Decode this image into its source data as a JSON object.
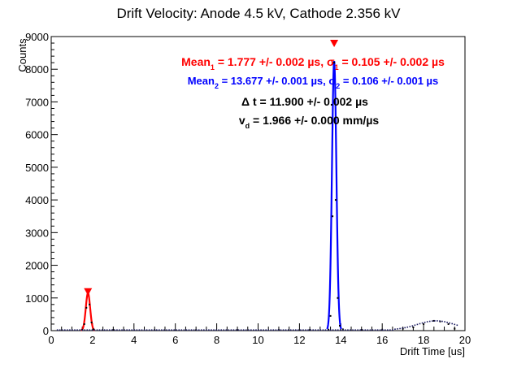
{
  "chart_data": {
    "type": "histogram",
    "title": "Drift Velocity: Anode 4.5 kV, Cathode 2.356 kV",
    "xlabel": "Drift Time [us]",
    "ylabel": "Counts",
    "xlim": [
      0,
      20
    ],
    "ylim": [
      0,
      9000
    ],
    "x_ticks": [
      0,
      2,
      4,
      6,
      8,
      10,
      12,
      14,
      16,
      18,
      20
    ],
    "y_ticks": [
      0,
      1000,
      2000,
      3000,
      4000,
      5000,
      6000,
      7000,
      8000,
      9000
    ],
    "grid": false,
    "histogram_points": [
      {
        "x": 1.5,
        "y": 30
      },
      {
        "x": 1.6,
        "y": 200
      },
      {
        "x": 1.7,
        "y": 700
      },
      {
        "x": 1.777,
        "y": 1150
      },
      {
        "x": 1.85,
        "y": 800
      },
      {
        "x": 1.95,
        "y": 250
      },
      {
        "x": 2.05,
        "y": 40
      },
      {
        "x": 3.0,
        "y": 20
      },
      {
        "x": 5.0,
        "y": 15
      },
      {
        "x": 7.0,
        "y": 15
      },
      {
        "x": 9.0,
        "y": 15
      },
      {
        "x": 11.0,
        "y": 20
      },
      {
        "x": 12.5,
        "y": 20
      },
      {
        "x": 13.4,
        "y": 30
      },
      {
        "x": 13.5,
        "y": 450
      },
      {
        "x": 13.6,
        "y": 3500
      },
      {
        "x": 13.677,
        "y": 8200
      },
      {
        "x": 13.75,
        "y": 4000
      },
      {
        "x": 13.85,
        "y": 1000
      },
      {
        "x": 13.95,
        "y": 150
      },
      {
        "x": 14.1,
        "y": 40
      },
      {
        "x": 15.0,
        "y": 20
      },
      {
        "x": 16.0,
        "y": 30
      },
      {
        "x": 17.0,
        "y": 60
      },
      {
        "x": 17.5,
        "y": 100
      },
      {
        "x": 18.0,
        "y": 200
      },
      {
        "x": 18.5,
        "y": 300
      },
      {
        "x": 18.8,
        "y": 280
      },
      {
        "x": 19.2,
        "y": 200
      },
      {
        "x": 19.5,
        "y": 60
      }
    ],
    "fits": [
      {
        "mean": 1.777,
        "sigma": 0.105,
        "peak": 1150,
        "color": "#ff0000"
      },
      {
        "mean": 13.677,
        "sigma": 0.106,
        "peak": 8250,
        "color": "#0000ff"
      }
    ],
    "markers": [
      {
        "x": 1.777,
        "y": 1150,
        "color": "#ff0000"
      },
      {
        "x": 13.677,
        "y": 8750,
        "color": "#ff0000"
      }
    ],
    "annotations": [
      {
        "key": "mean1",
        "text": "Mean1 = 1.777 +/- 0.002 µs, σ1 = 0.105 +/- 0.002 µs",
        "color": "#ff0000"
      },
      {
        "key": "mean2",
        "text": "Mean2 = 13.677 +/- 0.001 µs, σ2 = 0.106 +/- 0.001 µs",
        "color": "#0000ff"
      },
      {
        "key": "dt",
        "text": "Δ t = 11.900 +/- 0.002 µs",
        "color": "#000000"
      },
      {
        "key": "vd",
        "text": "vd = 1.966 +/- 0.000 mm/µs",
        "color": "#000000"
      }
    ]
  }
}
